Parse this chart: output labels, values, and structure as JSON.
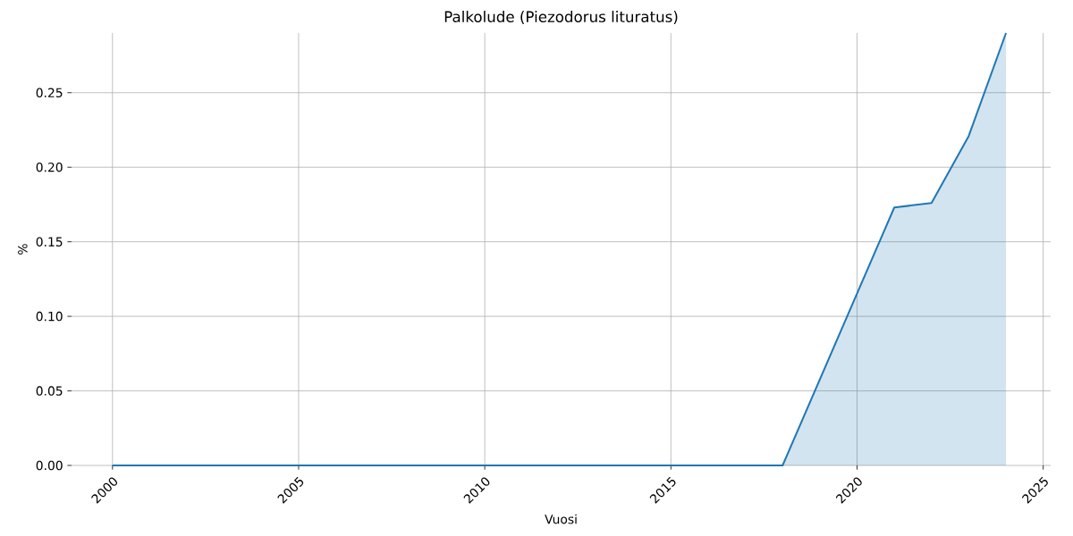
{
  "chart_data": {
    "type": "area",
    "title": "Palkolude (Piezodorus lituratus)",
    "xlabel": "Vuosi",
    "ylabel": "%",
    "x": [
      2000,
      2018,
      2021,
      2022,
      2023,
      2024
    ],
    "series": [
      {
        "color": "#1f77b4",
        "values": [
          0,
          0,
          0.173,
          0.176,
          0.221,
          0.29
        ]
      }
    ],
    "xlim": [
      1998.9,
      2025.2
    ],
    "ylim": [
      0,
      0.29
    ],
    "xticks": [
      2000,
      2005,
      2010,
      2015,
      2020,
      2025
    ],
    "yticks": [
      {
        "value": 0,
        "label": "0.00"
      },
      {
        "value": 0.05,
        "label": "0.05"
      },
      {
        "value": 0.1,
        "label": "0.10"
      },
      {
        "value": 0.15,
        "label": "0.15"
      },
      {
        "value": 0.2,
        "label": "0.20"
      },
      {
        "value": 0.25,
        "label": "0.25"
      }
    ],
    "grid": true,
    "marker": "none",
    "line_style": "solid"
  }
}
